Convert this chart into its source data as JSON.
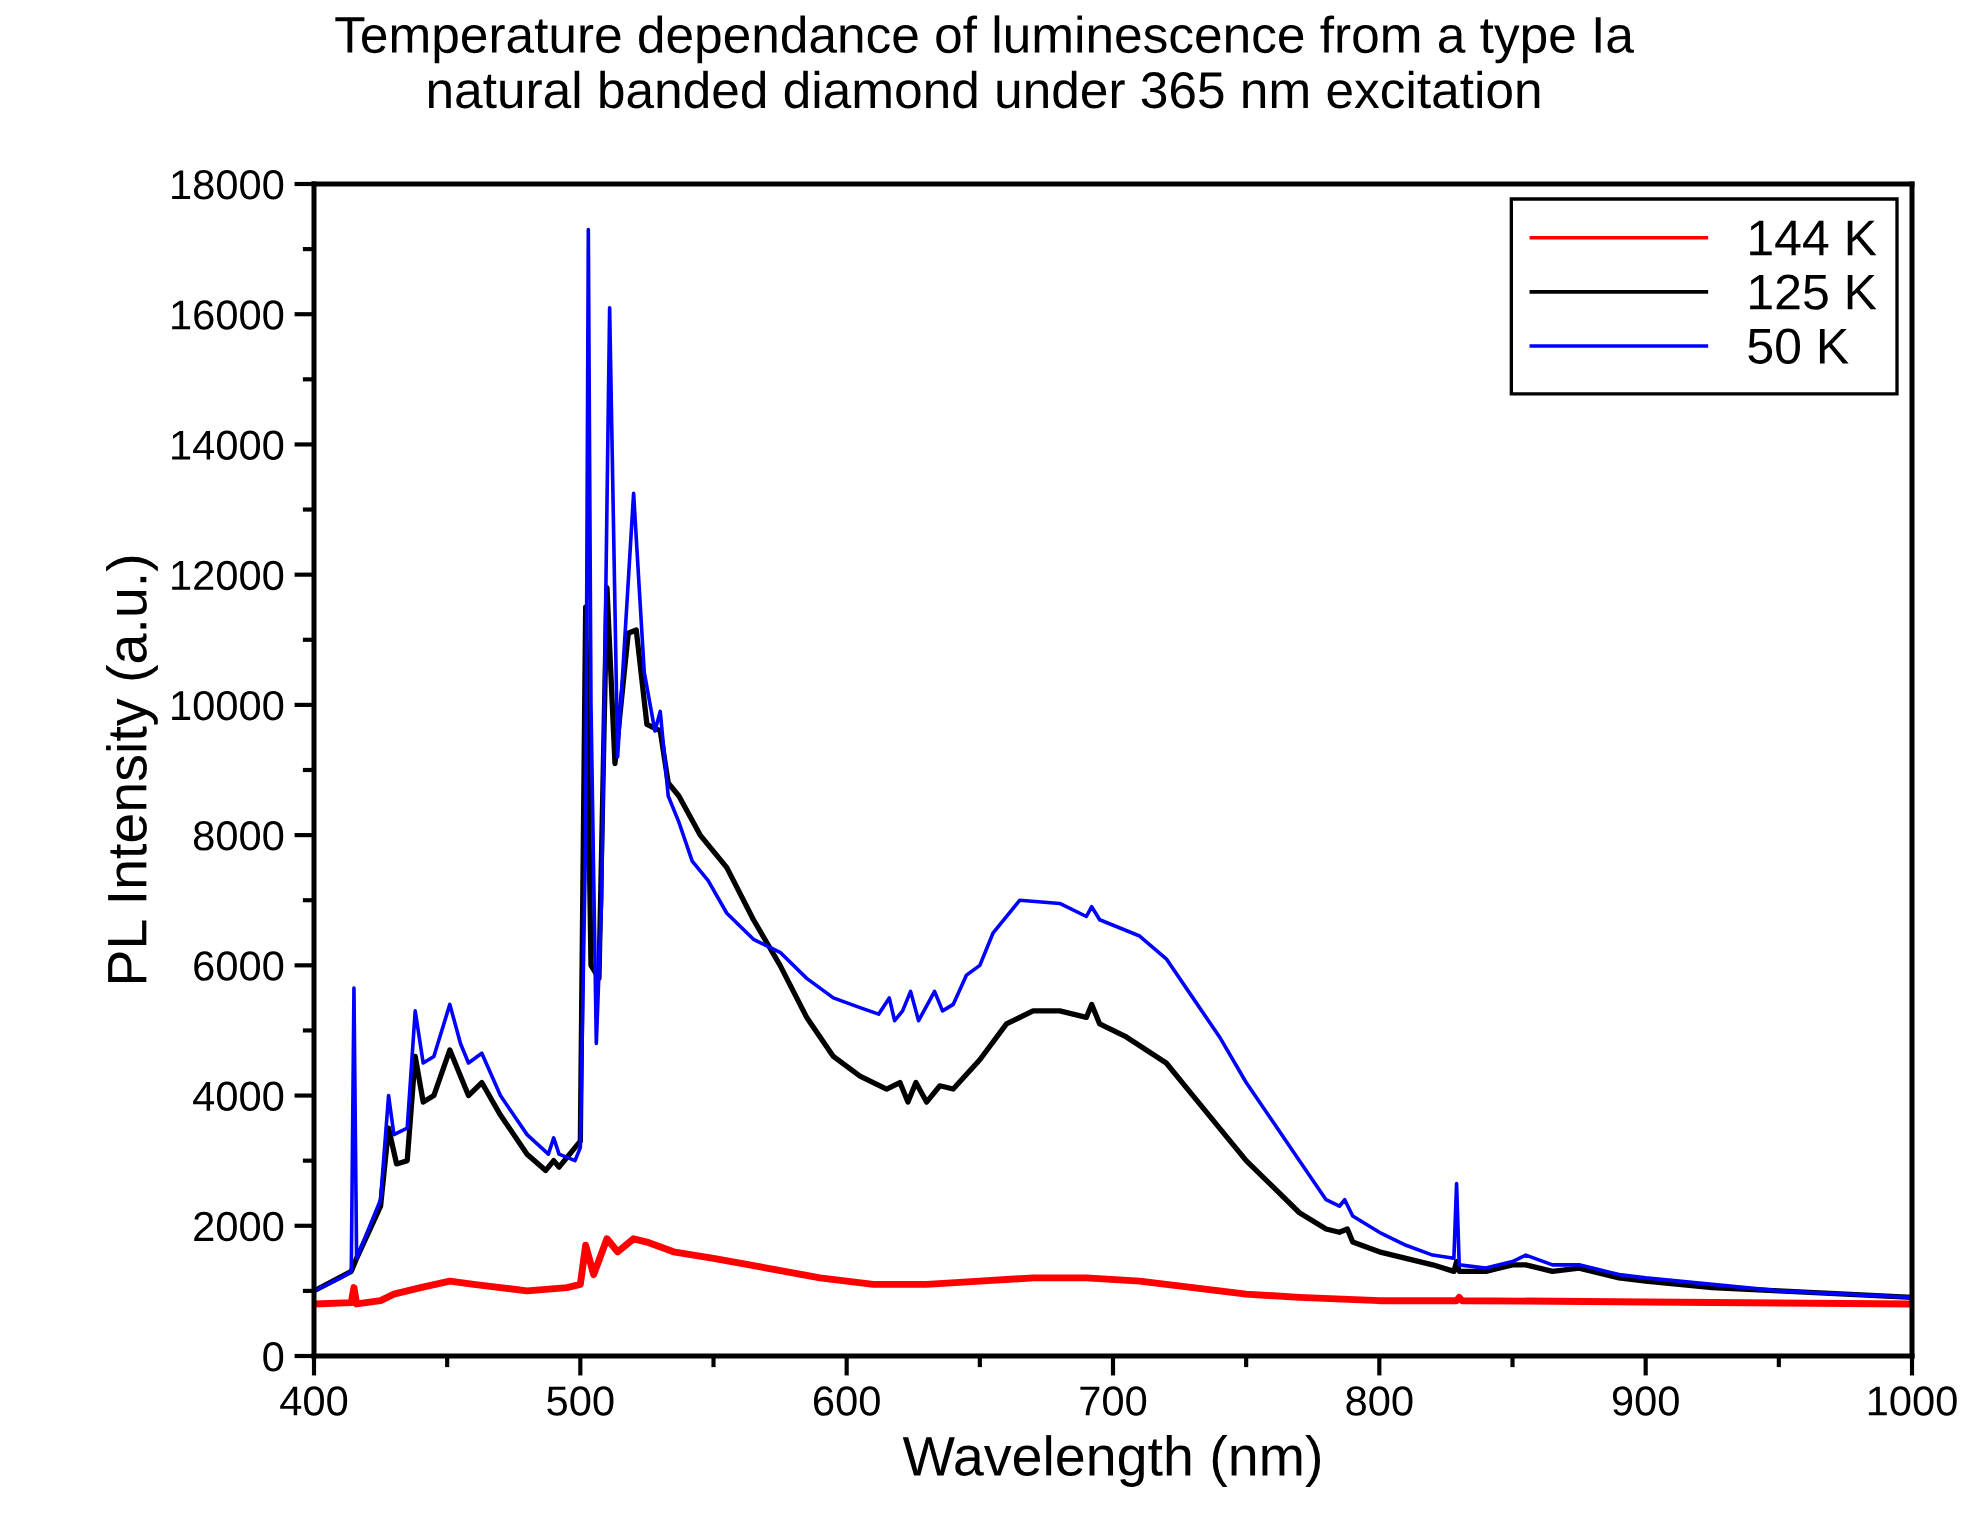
{
  "chart_data": {
    "type": "line",
    "title": "Temperature dependance of luminescence from a type Ia\nnatural banded diamond under 365 nm excitation",
    "xlabel": "Wavelength (nm)",
    "ylabel": "PL Intensity (a.u.)",
    "xlim": [
      400,
      1000
    ],
    "xticks": [
      400,
      500,
      600,
      700,
      800,
      900,
      1000
    ],
    "ylim": [
      0,
      18000
    ],
    "yticks": [
      0,
      2000,
      4000,
      6000,
      8000,
      10000,
      12000,
      14000,
      16000,
      18000
    ],
    "grid": false,
    "legend": "top right",
    "line_style": "solid",
    "marker": "none",
    "series": [
      {
        "name": "144 K",
        "color": "#ff0000",
        "x": [
          400,
          414,
          415,
          416,
          425,
          430,
          440,
          451,
          460,
          470,
          480,
          495,
          500,
          502,
          505,
          510,
          514,
          520,
          525,
          535,
          550,
          570,
          590,
          610,
          630,
          650,
          670,
          690,
          710,
          730,
          750,
          770,
          800,
          829,
          830,
          831,
          900,
          1000
        ],
        "values": [
          800,
          820,
          1050,
          800,
          850,
          950,
          1050,
          1150,
          1100,
          1050,
          1000,
          1050,
          1100,
          1700,
          1250,
          1800,
          1600,
          1800,
          1750,
          1600,
          1500,
          1350,
          1200,
          1100,
          1100,
          1150,
          1200,
          1200,
          1150,
          1050,
          950,
          900,
          850,
          850,
          900,
          850,
          830,
          800
        ]
      },
      {
        "name": "125 K",
        "color": "#000000",
        "x": [
          400,
          414,
          416,
          425,
          428,
          431,
          435,
          438,
          441,
          445,
          451,
          458,
          463,
          470,
          480,
          487,
          490,
          492,
          500,
          502,
          504,
          507,
          510,
          513,
          518,
          521,
          525,
          530,
          533,
          537,
          545,
          555,
          565,
          575,
          585,
          595,
          605,
          615,
          620,
          623,
          626,
          630,
          635,
          640,
          650,
          660,
          670,
          680,
          690,
          692,
          695,
          705,
          720,
          730,
          740,
          750,
          760,
          770,
          780,
          785,
          788,
          790,
          800,
          810,
          820,
          828,
          829,
          830,
          840,
          850,
          855,
          865,
          875,
          880,
          890,
          900,
          925,
          950,
          975,
          1000
        ],
        "values": [
          1000,
          1300,
          1500,
          2300,
          3500,
          2950,
          3000,
          4600,
          3900,
          4000,
          4700,
          4000,
          4200,
          3700,
          3100,
          2850,
          3000,
          2900,
          3300,
          11500,
          6000,
          5800,
          11800,
          9100,
          11100,
          11150,
          9700,
          9600,
          8800,
          8600,
          8000,
          7500,
          6700,
          6000,
          5200,
          4600,
          4300,
          4100,
          4200,
          3900,
          4200,
          3900,
          4150,
          4100,
          4550,
          5100,
          5300,
          5300,
          5200,
          5400,
          5100,
          4900,
          4500,
          4000,
          3500,
          3000,
          2600,
          2200,
          1950,
          1900,
          1950,
          1750,
          1600,
          1500,
          1400,
          1300,
          1450,
          1300,
          1300,
          1400,
          1400,
          1300,
          1350,
          1300,
          1200,
          1150,
          1050,
          1000,
          950,
          900
        ]
      },
      {
        "name": "50 K",
        "color": "#0000ff",
        "x": [
          400,
          410,
          414,
          415,
          416,
          420,
          425,
          428,
          430,
          435,
          438,
          441,
          445,
          451,
          455,
          458,
          463,
          470,
          480,
          488,
          490,
          492,
          498,
          500,
          502,
          503,
          504,
          506,
          508,
          511,
          514,
          520,
          524,
          528,
          530,
          533,
          537,
          542,
          548,
          555,
          565,
          575,
          585,
          595,
          605,
          612,
          616,
          618,
          621,
          624,
          627,
          633,
          636,
          640,
          645,
          650,
          655,
          665,
          680,
          690,
          692,
          695,
          710,
          720,
          730,
          740,
          750,
          760,
          770,
          780,
          785,
          787,
          790,
          800,
          810,
          820,
          828,
          829,
          830,
          840,
          850,
          855,
          865,
          875,
          880,
          890,
          900,
          925,
          950,
          975,
          1000
        ],
        "values": [
          1000,
          1200,
          1300,
          5650,
          1500,
          1900,
          2400,
          4000,
          3400,
          3500,
          5300,
          4500,
          4600,
          5400,
          4800,
          4500,
          4650,
          4000,
          3400,
          3100,
          3350,
          3100,
          3000,
          3200,
          8000,
          17300,
          10000,
          4800,
          7000,
          16100,
          9200,
          13250,
          10500,
          9600,
          9900,
          8600,
          8200,
          7600,
          7300,
          6800,
          6400,
          6200,
          5800,
          5500,
          5350,
          5250,
          5500,
          5150,
          5300,
          5600,
          5150,
          5600,
          5300,
          5400,
          5850,
          6000,
          6500,
          7000,
          6950,
          6750,
          6900,
          6700,
          6450,
          6100,
          5500,
          4900,
          4200,
          3600,
          3000,
          2400,
          2300,
          2400,
          2150,
          1900,
          1700,
          1550,
          1500,
          2650,
          1400,
          1350,
          1450,
          1550,
          1400,
          1400,
          1350,
          1250,
          1200,
          1100,
          1000,
          950,
          900
        ]
      }
    ]
  }
}
